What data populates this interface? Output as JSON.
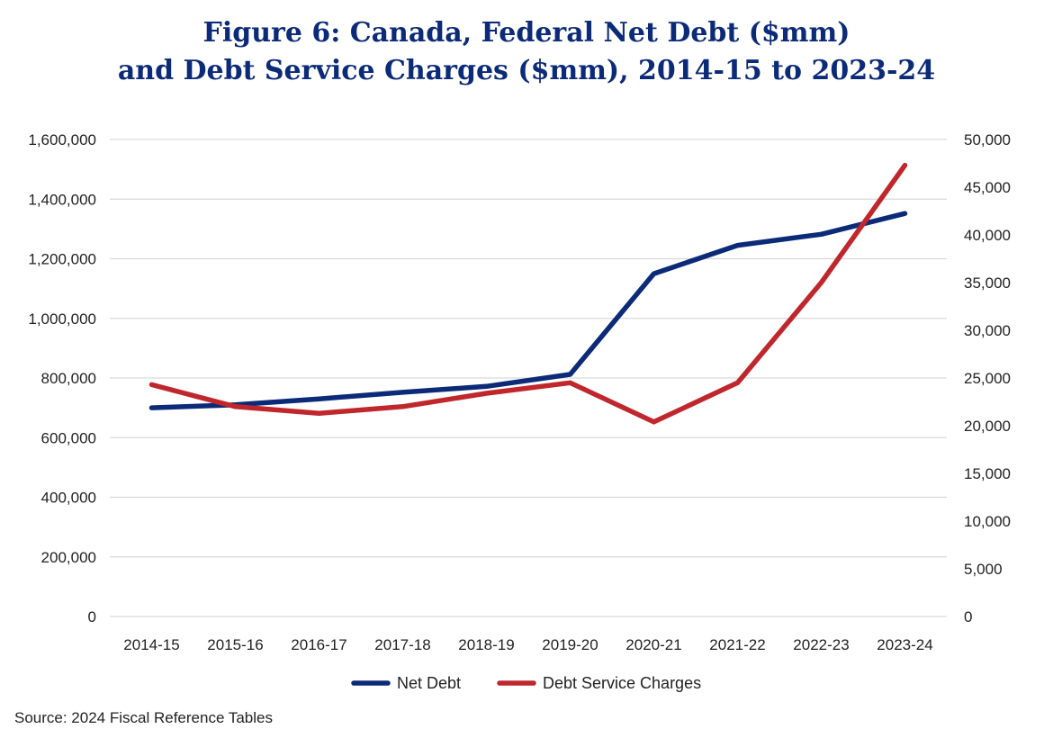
{
  "title": {
    "line1": "Figure 6: Canada, Federal Net Debt ($mm)",
    "line2": "and Debt Service Charges ($mm), 2014-15 to 2023-24"
  },
  "source": "Source: 2024 Fiscal Reference Tables",
  "colors": {
    "net_debt": "#0b2a78",
    "debt_service": "#c0272d",
    "grid": "#d9d9d9"
  },
  "chart_data": {
    "type": "line",
    "categories": [
      "2014-15",
      "2015-16",
      "2016-17",
      "2017-18",
      "2018-19",
      "2019-20",
      "2020-21",
      "2021-22",
      "2022-23",
      "2023-24"
    ],
    "series": [
      {
        "name": "Net Debt",
        "axis": "left",
        "values": [
          700000,
          710000,
          730000,
          752000,
          772000,
          812000,
          1150000,
          1245000,
          1282000,
          1352000
        ]
      },
      {
        "name": "Debt Service Charges",
        "axis": "right",
        "values": [
          24300,
          22000,
          21300,
          22000,
          23400,
          24500,
          20400,
          24500,
          35000,
          47300
        ]
      }
    ],
    "y_left": {
      "min": 0,
      "max": 1600000,
      "step": 200000,
      "tick_labels": [
        "0",
        "200,000",
        "400,000",
        "600,000",
        "800,000",
        "1,000,000",
        "1,200,000",
        "1,400,000",
        "1,600,000"
      ]
    },
    "y_right": {
      "min": 0,
      "max": 50000,
      "step": 5000,
      "tick_labels": [
        "0",
        "5,000",
        "10,000",
        "15,000",
        "20,000",
        "25,000",
        "30,000",
        "35,000",
        "40,000",
        "45,000",
        "50,000"
      ]
    },
    "grid": true,
    "legend": "bottom-center"
  }
}
